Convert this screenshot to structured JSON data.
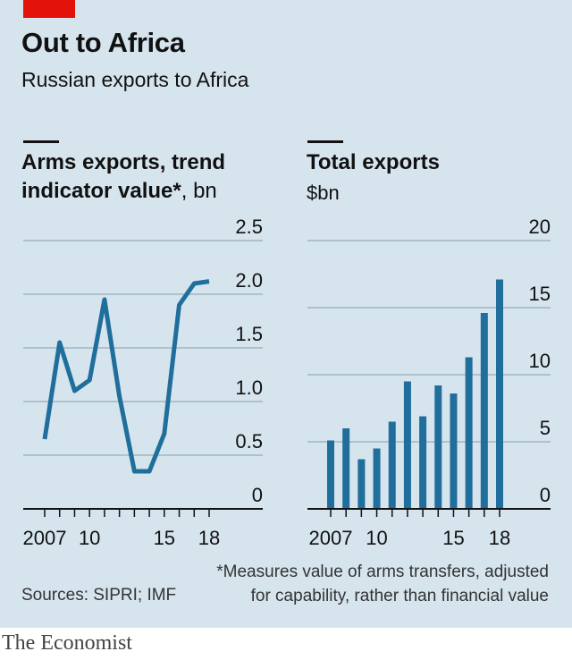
{
  "header": {
    "title": "Out to Africa",
    "subtitle": "Russian exports to Africa"
  },
  "chart_data": [
    {
      "type": "line",
      "title_line1": "Arms exports, trend",
      "title_line2": "indicator value*",
      "unit": ", bn",
      "x": [
        2007,
        2008,
        2009,
        2010,
        2011,
        2012,
        2013,
        2014,
        2015,
        2016,
        2017,
        2018
      ],
      "values": [
        0.65,
        1.55,
        1.1,
        1.2,
        1.95,
        1.05,
        0.35,
        0.35,
        0.7,
        1.9,
        2.1,
        2.12
      ],
      "ylim": [
        0,
        2.5
      ],
      "yticks": [
        "0",
        "0.5",
        "1.0",
        "1.5",
        "2.0",
        "2.5"
      ],
      "xtick_labels": [
        {
          "x": 2007,
          "label": "2007"
        },
        {
          "x": 2010,
          "label": "10"
        },
        {
          "x": 2015,
          "label": "15"
        },
        {
          "x": 2018,
          "label": "18"
        }
      ],
      "grid": true,
      "color": "#1f6e9c"
    },
    {
      "type": "bar",
      "title": "Total exports",
      "unit": "$bn",
      "x": [
        2007,
        2008,
        2009,
        2010,
        2011,
        2012,
        2013,
        2014,
        2015,
        2016,
        2017,
        2018
      ],
      "values": [
        5.1,
        6.0,
        3.7,
        4.5,
        6.5,
        9.5,
        6.9,
        9.2,
        8.6,
        11.3,
        14.6,
        17.1
      ],
      "ylim": [
        0,
        20
      ],
      "yticks": [
        "0",
        "5",
        "10",
        "15",
        "20"
      ],
      "xtick_labels": [
        {
          "x": 2007,
          "label": "2007"
        },
        {
          "x": 2010,
          "label": "10"
        },
        {
          "x": 2015,
          "label": "15"
        },
        {
          "x": 2018,
          "label": "18"
        }
      ],
      "grid": true,
      "color": "#1f6e9c"
    }
  ],
  "footnote": {
    "line1": "*Measures value of arms transfers, adjusted",
    "line2": "for capability, rather than financial value"
  },
  "sources": "Sources: SIPRI; IMF",
  "brand": "The Economist"
}
